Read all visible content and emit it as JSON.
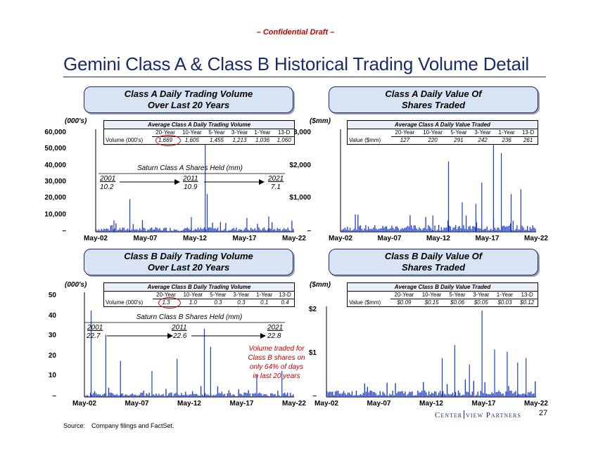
{
  "draft_label": "– Confidential Draft –",
  "title": "Gemini Class A & Class B Historical Trading Volume Detail",
  "page_number": "27",
  "logo": {
    "part1": "Center",
    "part2": "view Partners"
  },
  "source": {
    "label": "Source:",
    "text": "Company filings and FactSet."
  },
  "colors": {
    "bar": "#1f3fc4",
    "title": "#1a2b6b",
    "panel": "#d8e4f4",
    "note": "#c00000"
  },
  "panels": {
    "a_volume": {
      "line1": "Class A Daily Trading Volume",
      "line2": "Over Last 20 Years",
      "unit": "(000's)"
    },
    "a_value": {
      "line1": "Class A Daily Value Of",
      "line2": "Shares Traded",
      "unit": "($mm)"
    },
    "b_volume": {
      "line1": "Class B Daily Trading Volume",
      "line2": "Over Last 20 Years",
      "unit": "(000's)"
    },
    "b_value": {
      "line1": "Class B Daily Value Of",
      "line2": "Shares Traded",
      "unit": "($mm)"
    }
  },
  "stats": {
    "headers": [
      "20-Year",
      "10-Year",
      "5-Year",
      "3-Year",
      "1-Year",
      "13-D"
    ],
    "a_volume": {
      "title": "Average Class A Daily Trading Volume",
      "row_label": "Volume (000's)",
      "values": [
        "1,669",
        "1,605",
        "1,455",
        "1,213",
        "1,036",
        "1,060"
      ]
    },
    "a_value": {
      "title": "Average Class A Daily Value Traded",
      "row_label": "Value ($mm)",
      "values": [
        "127",
        "220",
        "291",
        "242",
        "236",
        "261"
      ]
    },
    "b_volume": {
      "title": "Average Class B Daily Trading Volume",
      "row_label": "Volume (000's)",
      "values": [
        "1.3",
        "1.0",
        "0.3",
        "0.3",
        "0.1",
        "0.4"
      ]
    },
    "b_value": {
      "title": "Average Class B Daily Value Traded",
      "row_label": "Value ($mm)",
      "values": [
        "$0.09",
        "$0.15",
        "$0.06",
        "$0.05",
        "$0.03",
        "$0.12"
      ]
    }
  },
  "held": {
    "a": {
      "title": "Saturn Class A Shares Held (mm)",
      "years": [
        "2001",
        "2011",
        "2021"
      ],
      "values": [
        "10.2",
        "10.9",
        "7.1"
      ]
    },
    "b": {
      "title": "Saturn Class B Shares Held (mm)",
      "years": [
        "2001",
        "2011",
        "2021"
      ],
      "values": [
        "22.7",
        "22.6",
        "22.8"
      ]
    }
  },
  "note": "Volume traded for Class B shares on only 64% of days in last 20 years",
  "chart_data": [
    {
      "type": "bar",
      "title": "Class A Daily Trading Volume Over Last 20 Years",
      "ylabel": "(000's)",
      "x_ticks": [
        "May-02",
        "May-07",
        "May-12",
        "May-17",
        "May-22"
      ],
      "y_ticks": [
        "–",
        "10,000",
        "20,000",
        "30,000",
        "40,000",
        "50,000",
        "60,000"
      ],
      "ylim": [
        0,
        60000
      ],
      "baseline": 1669,
      "spikes": [
        [
          0.17,
          20000
        ],
        [
          0.48,
          9000
        ],
        [
          0.55,
          58000
        ],
        [
          0.56,
          23000
        ],
        [
          0.76,
          8500
        ],
        [
          0.87,
          9500
        ],
        [
          0.09,
          7000
        ]
      ]
    },
    {
      "type": "bar",
      "title": "Class A Daily Value Of Shares Traded",
      "ylabel": "($mm)",
      "x_ticks": [
        "May-02",
        "May-07",
        "May-12",
        "May-17",
        "May-22"
      ],
      "y_ticks": [
        "–",
        "$1,000",
        "$2,000",
        "$3,000"
      ],
      "ylim": [
        0,
        3000
      ],
      "baseline": 127,
      "spikes": [
        [
          0.55,
          2150
        ],
        [
          0.78,
          2700
        ],
        [
          0.82,
          2400
        ],
        [
          0.72,
          1500
        ],
        [
          0.87,
          1150
        ],
        [
          0.62,
          900
        ],
        [
          0.92,
          1300
        ],
        [
          0.69,
          850
        ],
        [
          0.47,
          500
        ]
      ]
    },
    {
      "type": "bar",
      "title": "Class B Daily Trading Volume Over Last 20 Years",
      "ylabel": "(000's)",
      "x_ticks": [
        "May-02",
        "May-07",
        "May-12",
        "May-17",
        "May-22"
      ],
      "y_ticks": [
        "–",
        "10",
        "20",
        "30",
        "40",
        "50"
      ],
      "ylim": [
        0,
        50
      ],
      "baseline": 1.3,
      "spikes": [
        [
          0.03,
          43
        ],
        [
          0.1,
          31
        ],
        [
          0.17,
          18
        ],
        [
          0.32,
          13
        ],
        [
          0.44,
          19
        ],
        [
          0.57,
          34
        ],
        [
          0.6,
          25
        ],
        [
          0.82,
          11
        ],
        [
          0.94,
          13
        ]
      ]
    },
    {
      "type": "bar",
      "title": "Class B Daily Value Of Shares Traded",
      "ylabel": "($mm)",
      "x_ticks": [
        "May-02",
        "May-07",
        "May-12",
        "May-17",
        "May-22"
      ],
      "y_ticks": [
        "–",
        "$1",
        "$2"
      ],
      "ylim": [
        0,
        2
      ],
      "baseline": 0.09,
      "spikes": [
        [
          0.55,
          0.9
        ],
        [
          0.61,
          1.2
        ],
        [
          0.74,
          2.0
        ],
        [
          0.8,
          1.1
        ],
        [
          0.86,
          1.05
        ],
        [
          0.91,
          0.8
        ],
        [
          0.95,
          0.9
        ],
        [
          0.68,
          0.75
        ]
      ]
    }
  ]
}
